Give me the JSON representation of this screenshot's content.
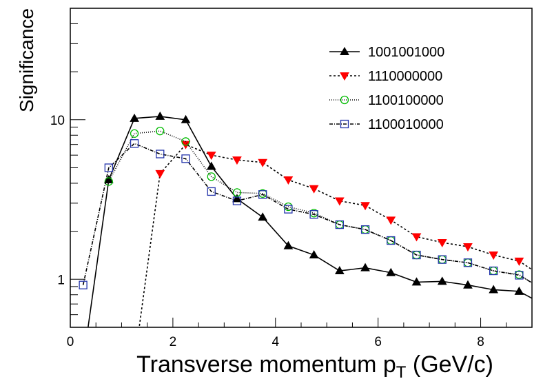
{
  "chart_data": {
    "type": "line",
    "xlabel": "Transverse momentum p",
    "xlabel_subscript": "T",
    "xlabel_suffix": " (GeV/c)",
    "ylabel": "Significance",
    "xlim": [
      0,
      9
    ],
    "ylim": [
      0.5,
      50
    ],
    "yscale": "log",
    "x_ticks": [
      0,
      2,
      4,
      6,
      8
    ],
    "x_tick_labels": [
      "0",
      "2",
      "4",
      "6",
      "8"
    ],
    "y_ticks": [
      1,
      10
    ],
    "y_tick_labels": [
      "1",
      "10"
    ],
    "legend_position": "top-right",
    "series": [
      {
        "name": "1001001000",
        "color": "#000000",
        "marker": "triangle-up",
        "dash": "",
        "x": [
          0.25,
          0.75,
          1.25,
          1.75,
          2.25,
          2.75,
          3.25,
          3.75,
          4.25,
          4.75,
          5.25,
          5.75,
          6.25,
          6.75,
          7.25,
          7.75,
          8.25,
          8.75,
          9.0
        ],
        "y": [
          0.3,
          4.2,
          10.2,
          10.5,
          10.0,
          5.1,
          3.2,
          2.45,
          1.62,
          1.42,
          1.13,
          1.18,
          1.1,
          0.96,
          0.97,
          0.92,
          0.86,
          0.84,
          0.76
        ],
        "markers": [
          false,
          true,
          true,
          true,
          true,
          true,
          true,
          true,
          true,
          true,
          true,
          true,
          true,
          true,
          true,
          true,
          true,
          true,
          false
        ]
      },
      {
        "name": "1110000000",
        "color": "#ff0000",
        "marker": "triangle-down",
        "dash": "3,3",
        "x": [
          1.25,
          1.75,
          2.25,
          2.75,
          3.25,
          3.75,
          4.25,
          4.75,
          5.25,
          5.75,
          6.25,
          6.75,
          7.25,
          7.75,
          8.25,
          8.75,
          9.0
        ],
        "y": [
          0.3,
          4.6,
          7.0,
          6.0,
          5.6,
          5.4,
          4.2,
          3.7,
          3.1,
          2.9,
          2.35,
          1.85,
          1.7,
          1.6,
          1.42,
          1.3,
          1.15
        ],
        "markers": [
          false,
          true,
          true,
          true,
          true,
          true,
          true,
          true,
          true,
          true,
          true,
          true,
          true,
          true,
          true,
          true,
          false
        ]
      },
      {
        "name": "1100100000",
        "color": "#00bb00",
        "marker": "circle-open",
        "dash": "1,2",
        "x": [
          0.75,
          1.25,
          1.75,
          2.25,
          2.75,
          3.25,
          3.75,
          4.25,
          4.75,
          5.25,
          5.75,
          6.25,
          6.75,
          7.25,
          7.75,
          8.25,
          8.75,
          9.0
        ],
        "y": [
          4.1,
          8.2,
          8.5,
          7.3,
          4.4,
          3.5,
          3.45,
          2.85,
          2.6,
          2.2,
          2.05,
          1.75,
          1.42,
          1.33,
          1.27,
          1.13,
          1.07,
          0.95
        ],
        "markers": [
          true,
          true,
          true,
          true,
          true,
          true,
          true,
          true,
          true,
          true,
          true,
          true,
          true,
          true,
          true,
          true,
          true,
          false
        ]
      },
      {
        "name": "1100010000",
        "color": "#2233aa",
        "marker": "square-open",
        "dash": "5,2,1,2",
        "x": [
          0.25,
          0.75,
          1.25,
          1.75,
          2.25,
          2.75,
          3.25,
          3.75,
          4.25,
          4.75,
          5.25,
          5.75,
          6.25,
          6.75,
          7.25,
          7.75,
          8.25,
          8.75,
          9.0
        ],
        "y": [
          0.92,
          5.0,
          7.1,
          6.1,
          5.7,
          3.55,
          3.1,
          3.4,
          2.75,
          2.55,
          2.2,
          2.05,
          1.75,
          1.42,
          1.33,
          1.27,
          1.13,
          1.06,
          0.95
        ],
        "markers": [
          true,
          true,
          true,
          true,
          true,
          true,
          true,
          true,
          true,
          true,
          true,
          true,
          true,
          true,
          true,
          true,
          true,
          true,
          false
        ]
      }
    ]
  }
}
